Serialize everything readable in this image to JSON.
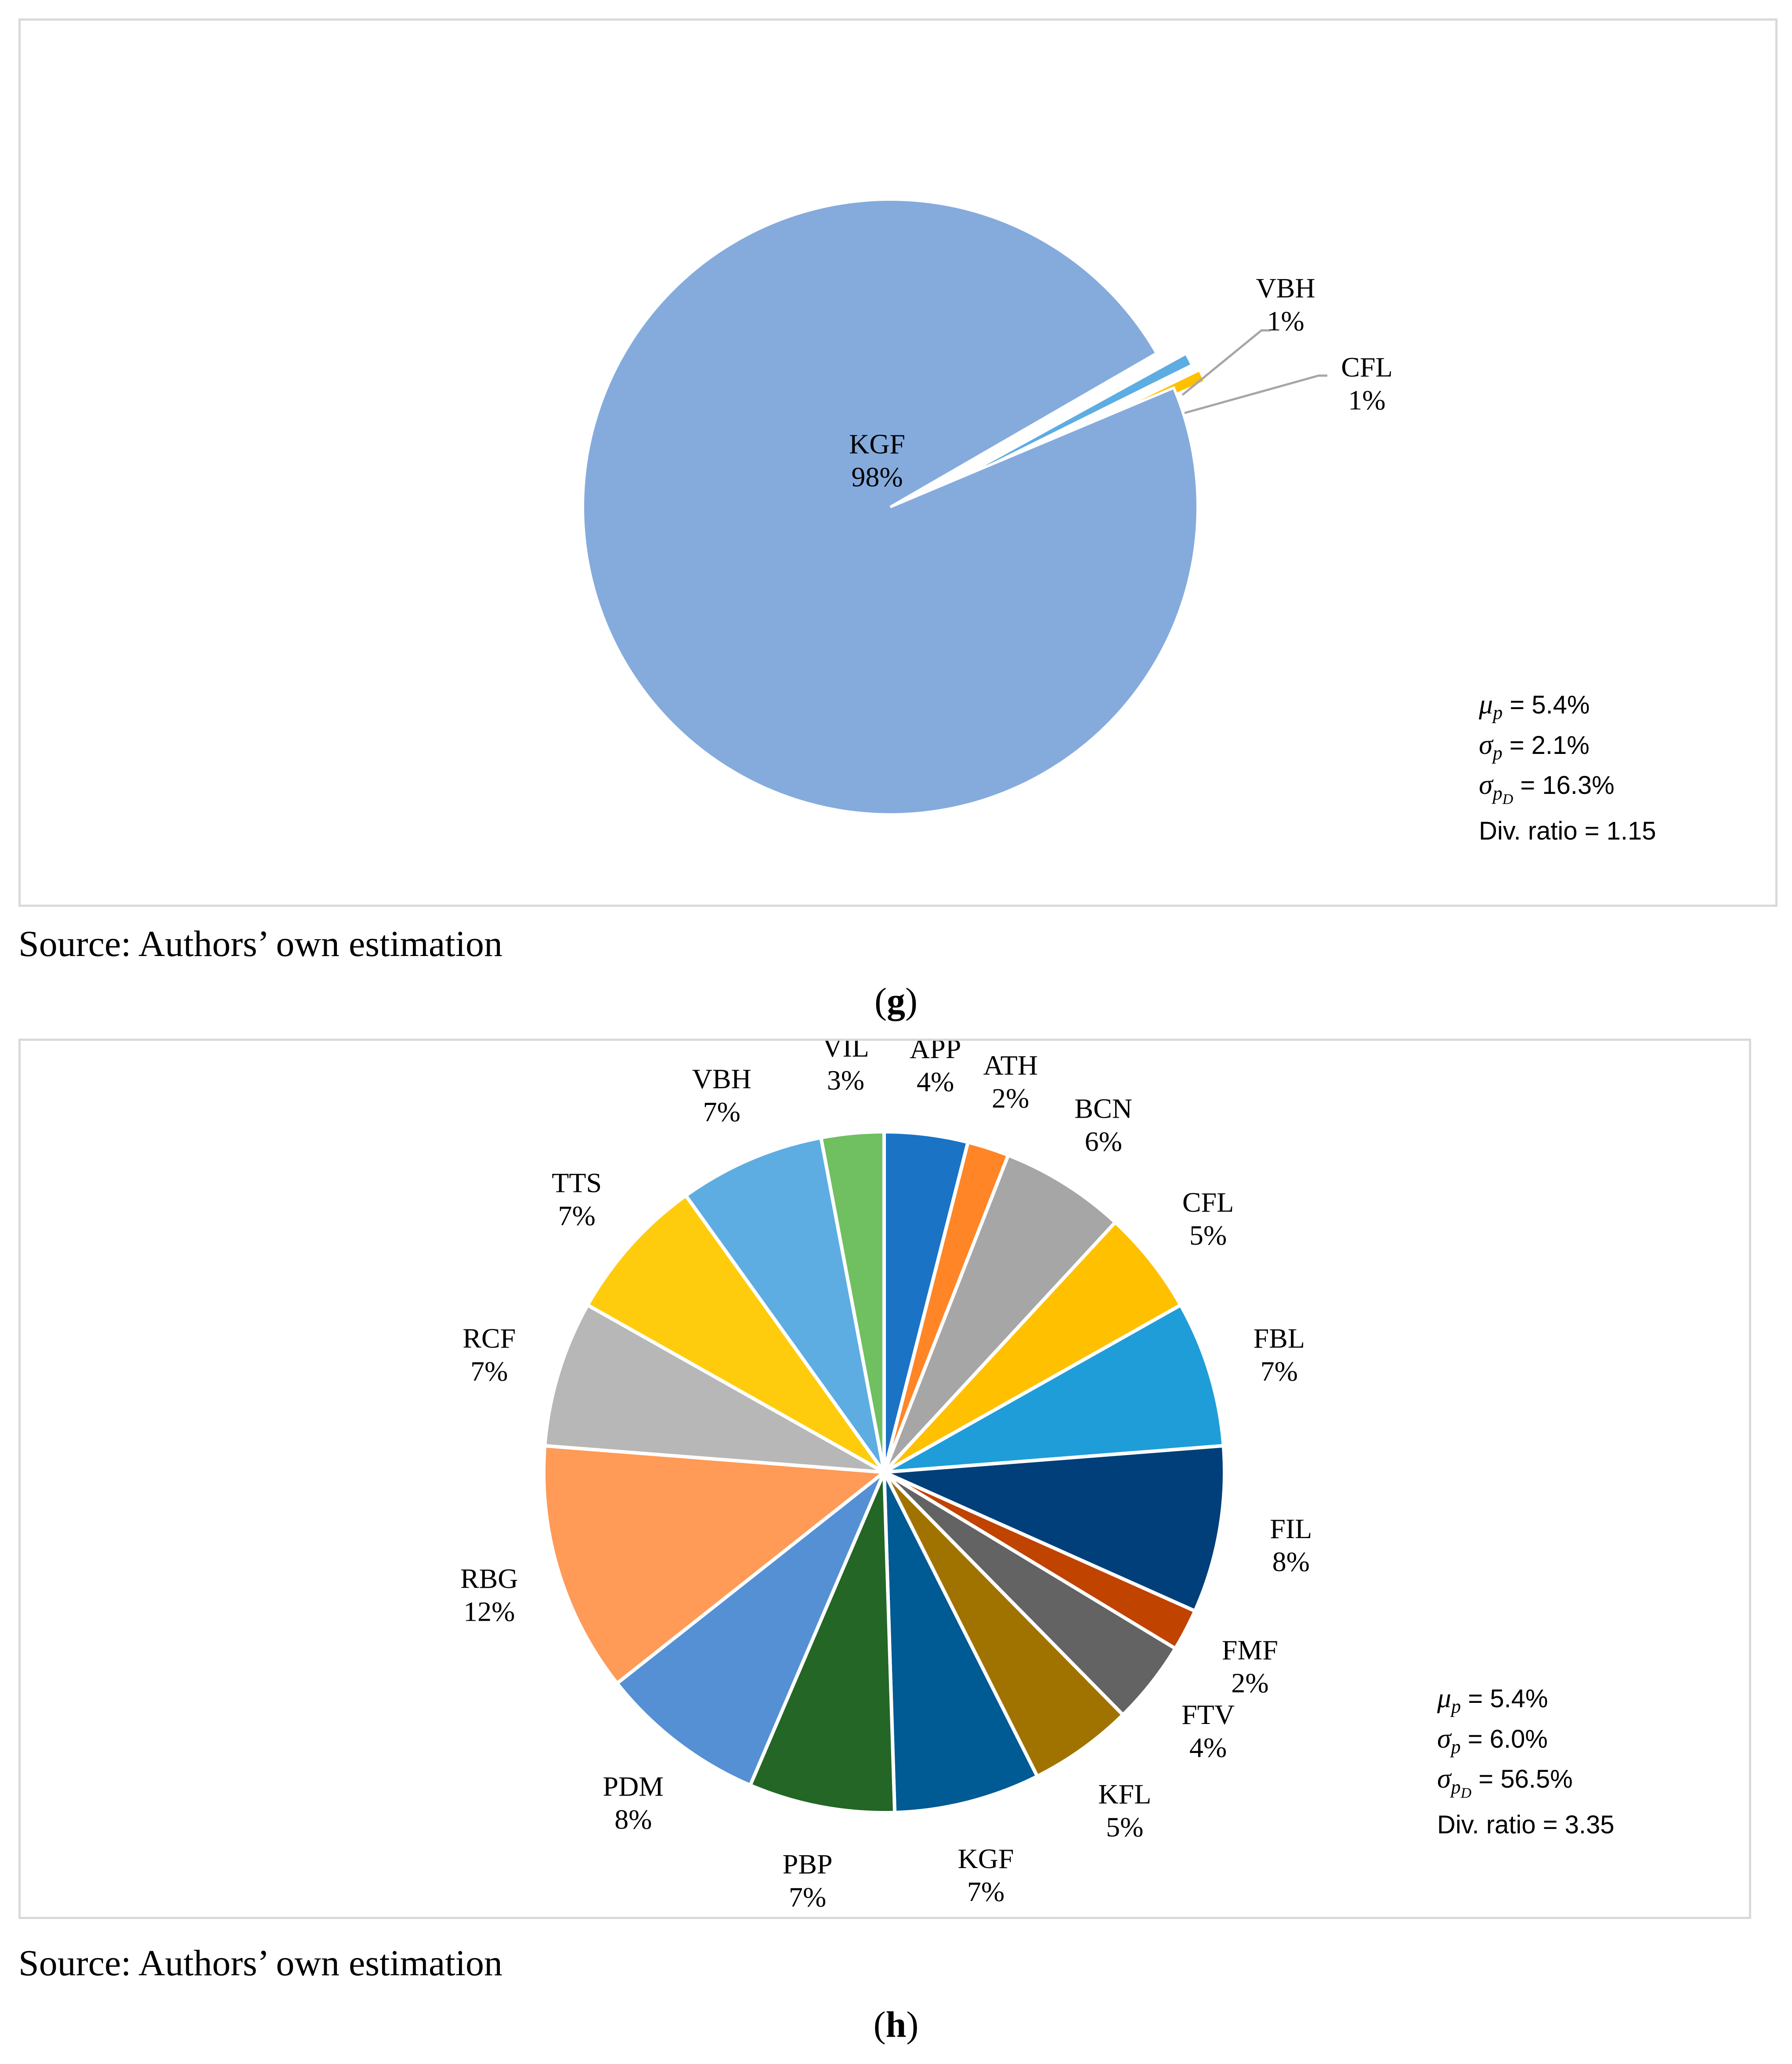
{
  "chart_data": [
    {
      "type": "pie",
      "panel_letter": "g",
      "panel_open": "(",
      "panel_close": ")",
      "source": "Source: Authors’ own estimation",
      "slices": [
        {
          "label": "KGF",
          "value": 98,
          "display": "98%",
          "color": "#85ABDD"
        },
        {
          "label": "VBH",
          "value": 1,
          "display": "1%",
          "color": "#5DADE2"
        },
        {
          "label": "CFL",
          "value": 1,
          "display": "1%",
          "color": "#FFC000"
        }
      ],
      "stats": {
        "mu_p": "= 5.4%",
        "sigma_p": "= 2.1%",
        "sigma_pD": "= 16.3%",
        "div_ratio": "Div. ratio = 1.15"
      }
    },
    {
      "type": "pie",
      "panel_letter": "h",
      "panel_open": "(",
      "panel_close": ")",
      "source": "Source: Authors’ own estimation",
      "slices": [
        {
          "label": "APP",
          "value": 4,
          "display": "4%",
          "color": "#1B73C6"
        },
        {
          "label": "ATH",
          "value": 2,
          "display": "2%",
          "color": "#FF8527"
        },
        {
          "label": "BCN",
          "value": 6,
          "display": "6%",
          "color": "#A6A6A6"
        },
        {
          "label": "CFL",
          "value": 5,
          "display": "5%",
          "color": "#FFC000"
        },
        {
          "label": "FBL",
          "value": 7,
          "display": "7%",
          "color": "#1F9DD9"
        },
        {
          "label": "FIL",
          "value": 8,
          "display": "8%",
          "color": "#003F7A"
        },
        {
          "label": "FMF",
          "value": 2,
          "display": "2%",
          "color": "#C04300"
        },
        {
          "label": "FTV",
          "value": 4,
          "display": "4%",
          "color": "#636363"
        },
        {
          "label": "KFL",
          "value": 5,
          "display": "5%",
          "color": "#A07300"
        },
        {
          "label": "KGF",
          "value": 7,
          "display": "7%",
          "color": "#005A94"
        },
        {
          "label": "PBP",
          "value": 7,
          "display": "7%",
          "color": "#236625"
        },
        {
          "label": "PDM",
          "value": 8,
          "display": "8%",
          "color": "#5590D5"
        },
        {
          "label": "RBG",
          "value": 12,
          "display": "12%",
          "color": "#FF9A57"
        },
        {
          "label": "RCF",
          "value": 7,
          "display": "7%",
          "color": "#B7B7B7"
        },
        {
          "label": "TTS",
          "value": 7,
          "display": "7%",
          "color": "#FFCC0D"
        },
        {
          "label": "VBH",
          "value": 7,
          "display": "7%",
          "color": "#5DADE2"
        },
        {
          "label": "VIL",
          "value": 3,
          "display": "3%",
          "color": "#70BF61"
        }
      ],
      "stats": {
        "mu_p": "= 5.4%",
        "sigma_p": "= 6.0%",
        "sigma_pD": "= 56.5%",
        "div_ratio": "Div. ratio = 3.35"
      }
    }
  ]
}
